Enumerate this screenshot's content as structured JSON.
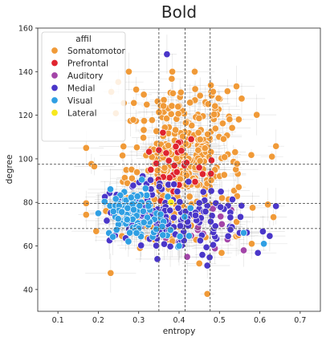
{
  "chart_data": {
    "type": "scatter",
    "title": "Bold",
    "xlabel": "entropy",
    "ylabel": "degree",
    "xlim": [
      0.05,
      0.75
    ],
    "ylim": [
      30,
      160
    ],
    "xticks": [
      "0.1",
      "0.2",
      "0.3",
      "0.4",
      "0.5",
      "0.6",
      "0.7"
    ],
    "yticks": [
      "40",
      "60",
      "80",
      "100",
      "120",
      "140",
      "160"
    ],
    "grid": false,
    "error_bars": true,
    "reference_lines": {
      "vertical": [
        0.35,
        0.415,
        0.477
      ],
      "horizontal": [
        68,
        79.5,
        97.5
      ]
    },
    "legend": {
      "title": "affil",
      "placement": "top-left",
      "entries": [
        {
          "name": "Somatomotor",
          "color": "#F09A38"
        },
        {
          "name": "Prefrontal",
          "color": "#E0242F"
        },
        {
          "name": "Auditory",
          "color": "#A345A8"
        },
        {
          "name": "Medial",
          "color": "#4A36C9"
        },
        {
          "name": "Visual",
          "color": "#2F9FE3"
        },
        {
          "name": "Lateral",
          "color": "#F7E81D"
        }
      ]
    },
    "series": [
      {
        "name": "Somatomotor",
        "color": "#F09A38",
        "clusters": [
          {
            "cx": 0.42,
            "cy": 100,
            "sx": 0.07,
            "sy": 15,
            "n": 260
          },
          {
            "cx": 0.4,
            "cy": 122,
            "sx": 0.08,
            "sy": 7,
            "n": 40
          },
          {
            "cx": 0.35,
            "cy": 75,
            "sx": 0.09,
            "sy": 10,
            "n": 60
          }
        ],
        "points": [
          [
            0.26,
            101.5
          ],
          [
            0.19,
            96.5
          ],
          [
            0.62,
            79
          ],
          [
            0.63,
            101
          ],
          [
            0.47,
            38
          ],
          [
            0.52,
            131
          ],
          [
            0.44,
            132
          ],
          [
            0.58,
            61
          ]
        ]
      },
      {
        "name": "Prefrontal",
        "color": "#E0242F",
        "clusters": [
          {
            "cx": 0.4,
            "cy": 99,
            "sx": 0.035,
            "sy": 7,
            "n": 24
          }
        ],
        "points": [
          [
            0.36,
            112
          ],
          [
            0.43,
            109
          ],
          [
            0.35,
            104
          ],
          [
            0.45,
            96
          ],
          [
            0.33,
            95
          ],
          [
            0.4,
            88
          ]
        ]
      },
      {
        "name": "Auditory",
        "color": "#A345A8",
        "clusters": [
          {
            "cx": 0.47,
            "cy": 68,
            "sx": 0.05,
            "sy": 6,
            "n": 14
          }
        ],
        "points": [
          [
            0.42,
            55
          ],
          [
            0.52,
            63
          ],
          [
            0.56,
            58
          ]
        ]
      },
      {
        "name": "Medial",
        "color": "#4A36C9",
        "clusters": [
          {
            "cx": 0.42,
            "cy": 71,
            "sx": 0.085,
            "sy": 7,
            "n": 120
          },
          {
            "cx": 0.3,
            "cy": 79,
            "sx": 0.05,
            "sy": 6,
            "n": 35
          }
        ],
        "points": [
          [
            0.37,
            148
          ],
          [
            0.47,
            51
          ],
          [
            0.55,
            66
          ],
          [
            0.31,
            92
          ]
        ]
      },
      {
        "name": "Visual",
        "color": "#2F9FE3",
        "clusters": [
          {
            "cx": 0.28,
            "cy": 76,
            "sx": 0.035,
            "sy": 5,
            "n": 75
          },
          {
            "cx": 0.34,
            "cy": 69,
            "sx": 0.05,
            "sy": 5,
            "n": 25
          }
        ],
        "points": [
          [
            0.2,
            75
          ],
          [
            0.23,
            86
          ],
          [
            0.61,
            61
          ],
          [
            0.56,
            66
          ],
          [
            0.4,
            60
          ]
        ]
      },
      {
        "name": "Lateral",
        "color": "#F7E81D",
        "clusters": [],
        "points": [
          [
            0.38,
            80
          ]
        ]
      }
    ]
  }
}
